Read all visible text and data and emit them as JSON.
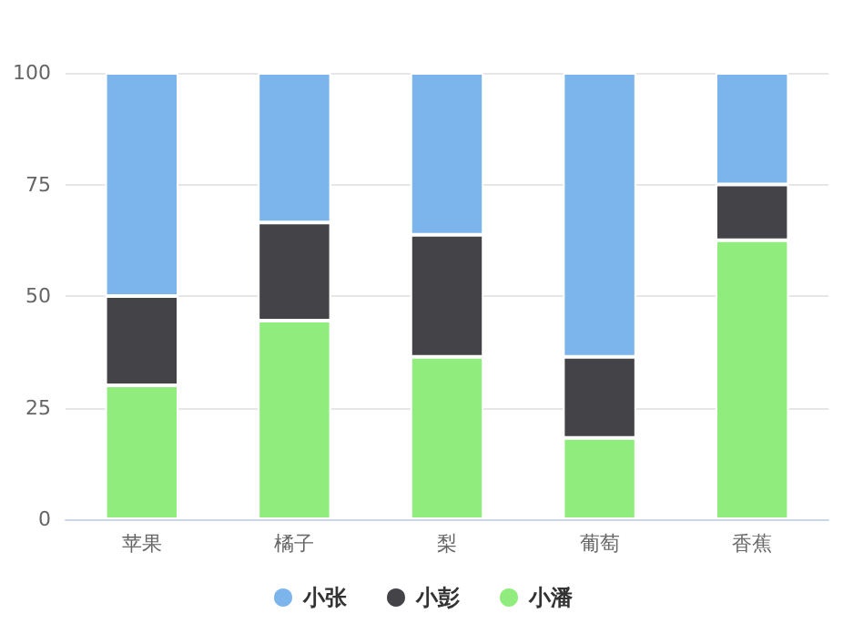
{
  "chart_data": {
    "type": "bar",
    "stacked": true,
    "categories": [
      "苹果",
      "橘子",
      "梨",
      "葡萄",
      "香蕉"
    ],
    "series": [
      {
        "name": "小潘",
        "color": "#90ed7d",
        "values": [
          30,
          44.5,
          36.4,
          18.2,
          62.5
        ]
      },
      {
        "name": "小彭",
        "color": "#434348",
        "values": [
          20,
          22,
          27.3,
          18.2,
          12.5
        ]
      },
      {
        "name": "小张",
        "color": "#7cb5ec",
        "values": [
          50,
          33.5,
          36.3,
          63.6,
          25
        ]
      }
    ],
    "ylim": [
      0,
      100
    ],
    "yticks": [
      0,
      25,
      50,
      75,
      100
    ],
    "grid": "y",
    "legend": "bottom"
  }
}
